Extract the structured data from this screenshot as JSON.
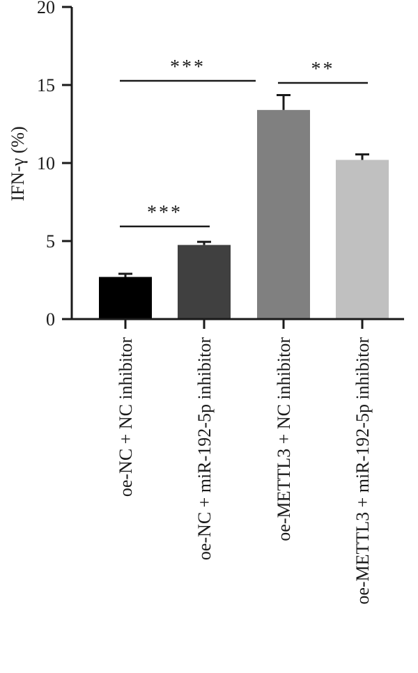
{
  "chart_data": {
    "type": "bar",
    "ylabel": "IFN-γ (%)",
    "ylim": [
      0,
      20
    ],
    "yticks": [
      "0",
      "5",
      "10",
      "15",
      "20"
    ],
    "categories": [
      "oe-NC + NC inhibitor",
      "oe-NC + miR-192-5p inhibitor",
      "oe-METTL3 + NC inhibitor",
      "oe-METTL3 + miR-192-5p inhibitor"
    ],
    "values": [
      2.7,
      4.75,
      13.4,
      10.2
    ],
    "errors": [
      0.2,
      0.2,
      0.95,
      0.35
    ],
    "colors": [
      "#000000",
      "#404040",
      "#808080",
      "#c0c0c0"
    ],
    "grid": false,
    "significance": [
      {
        "from": 0,
        "to": 1,
        "label": "***"
      },
      {
        "from": 0,
        "to": 2,
        "label": "***"
      },
      {
        "from": 2,
        "to": 3,
        "label": "**"
      }
    ]
  }
}
